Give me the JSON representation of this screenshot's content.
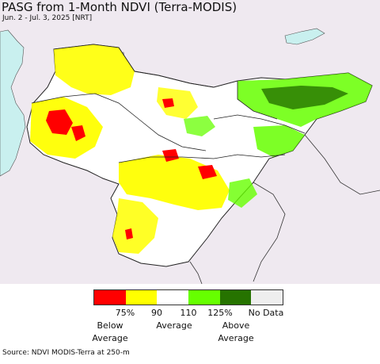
{
  "title": "PASG from 1-Month NDVI (Terra-MODIS)",
  "subtitle": "Jun. 2 - Jul. 3, 2025 [NRT]",
  "legend": {
    "colors": [
      "#ff0000",
      "#ffff00",
      "#ffffff",
      "#66ff00",
      "#267300",
      "#eeeeee"
    ],
    "ticks": [
      "75%",
      "90",
      "110",
      "125%",
      "No Data"
    ],
    "captions": {
      "below_line1": "Below",
      "below_line2": "Average",
      "average": "Average",
      "above_line1": "Above",
      "above_line2": "Average"
    }
  },
  "source": "Source: NDVI MODIS-Terra at 250-m",
  "colors": {
    "water": "#c9f0ef",
    "outside": "#efe9f0",
    "land_neutral": "#ffffff",
    "border": "#222222"
  }
}
